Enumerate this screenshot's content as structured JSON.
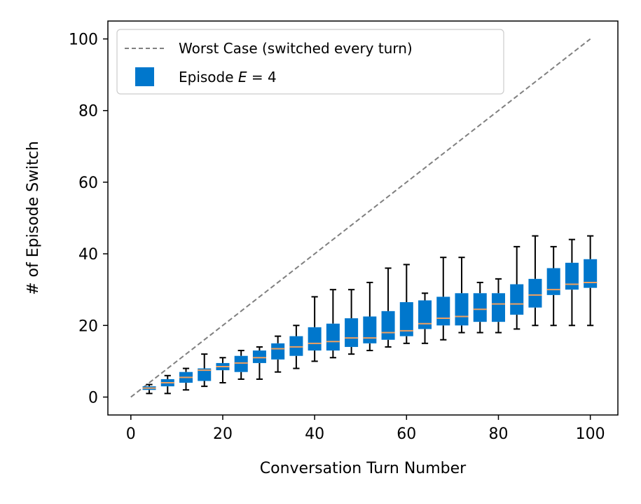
{
  "chart_data": {
    "type": "boxplot",
    "title": "",
    "xlabel": "Conversation Turn Number",
    "ylabel": "# of Episode Switch",
    "xlim": [
      -5,
      106
    ],
    "ylim": [
      -5,
      105
    ],
    "xticks": [
      0,
      20,
      40,
      60,
      80,
      100
    ],
    "yticks": [
      0,
      20,
      40,
      60,
      80,
      100
    ],
    "grid": false,
    "legend_position": "top-left",
    "legend": {
      "worst_case": "Worst Case (switched every turn)",
      "episode_prefix": "Episode ",
      "episode_var": "E",
      "episode_suffix": " = 4"
    },
    "worst_case_line": {
      "x": [
        0,
        100
      ],
      "y": [
        0,
        100
      ]
    },
    "colors": {
      "box": "#0077cc",
      "median": "#f0a060",
      "worst_case": "#808080",
      "whisker": "#000000"
    },
    "boxes": [
      {
        "x": 4,
        "min": 1,
        "q1": 2,
        "median": 2.5,
        "q3": 3,
        "max": 3.5
      },
      {
        "x": 8,
        "min": 1,
        "q1": 3,
        "median": 4,
        "q3": 5,
        "max": 6
      },
      {
        "x": 12,
        "min": 2,
        "q1": 4,
        "median": 5.5,
        "q3": 7,
        "max": 8
      },
      {
        "x": 16,
        "min": 3,
        "q1": 4.5,
        "median": 7.5,
        "q3": 8,
        "max": 12
      },
      {
        "x": 20,
        "min": 4,
        "q1": 7.5,
        "median": 8.5,
        "q3": 9.5,
        "max": 11
      },
      {
        "x": 24,
        "min": 5,
        "q1": 7,
        "median": 9.5,
        "q3": 11.5,
        "max": 13
      },
      {
        "x": 28,
        "min": 5,
        "q1": 9.5,
        "median": 11,
        "q3": 13,
        "max": 14
      },
      {
        "x": 32,
        "min": 7,
        "q1": 10.5,
        "median": 13.5,
        "q3": 15,
        "max": 17
      },
      {
        "x": 36,
        "min": 8,
        "q1": 11.5,
        "median": 14,
        "q3": 17,
        "max": 20
      },
      {
        "x": 40,
        "min": 10,
        "q1": 13,
        "median": 15,
        "q3": 19.5,
        "max": 28
      },
      {
        "x": 44,
        "min": 11,
        "q1": 13,
        "median": 15.5,
        "q3": 20.5,
        "max": 30
      },
      {
        "x": 48,
        "min": 12,
        "q1": 14,
        "median": 16.5,
        "q3": 22,
        "max": 30
      },
      {
        "x": 52,
        "min": 13,
        "q1": 15,
        "median": 16.5,
        "q3": 22.5,
        "max": 32
      },
      {
        "x": 56,
        "min": 14,
        "q1": 16,
        "median": 18,
        "q3": 24,
        "max": 36
      },
      {
        "x": 60,
        "min": 15,
        "q1": 17,
        "median": 18.5,
        "q3": 26.5,
        "max": 37
      },
      {
        "x": 64,
        "min": 15,
        "q1": 19,
        "median": 20.5,
        "q3": 27,
        "max": 29
      },
      {
        "x": 68,
        "min": 16,
        "q1": 20,
        "median": 22,
        "q3": 28,
        "max": 39
      },
      {
        "x": 72,
        "min": 18,
        "q1": 20,
        "median": 22.5,
        "q3": 29,
        "max": 39
      },
      {
        "x": 76,
        "min": 18,
        "q1": 21,
        "median": 24.5,
        "q3": 29,
        "max": 32
      },
      {
        "x": 80,
        "min": 18,
        "q1": 21,
        "median": 26,
        "q3": 29,
        "max": 33
      },
      {
        "x": 84,
        "min": 19,
        "q1": 23,
        "median": 26,
        "q3": 31.5,
        "max": 42
      },
      {
        "x": 88,
        "min": 20,
        "q1": 25,
        "median": 28.5,
        "q3": 33,
        "max": 45
      },
      {
        "x": 92,
        "min": 20,
        "q1": 28.5,
        "median": 30,
        "q3": 36,
        "max": 42
      },
      {
        "x": 96,
        "min": 20,
        "q1": 30,
        "median": 31.5,
        "q3": 37.5,
        "max": 44
      },
      {
        "x": 100,
        "min": 20,
        "q1": 30.5,
        "median": 32,
        "q3": 38.5,
        "max": 45
      }
    ]
  }
}
